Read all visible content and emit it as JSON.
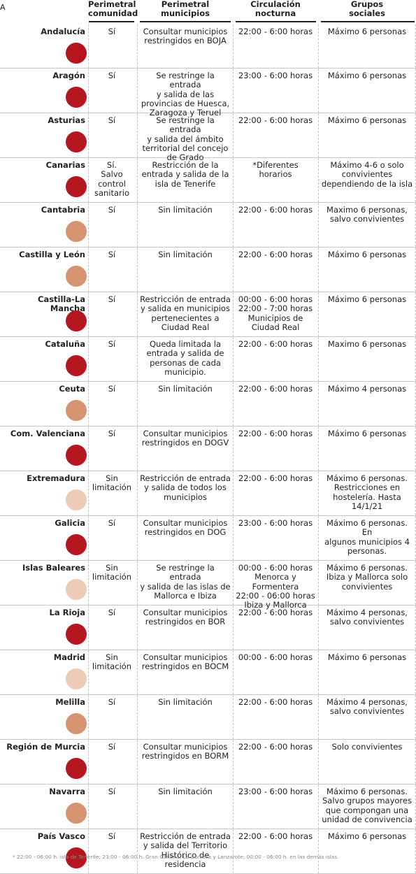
{
  "corner_mark": "A",
  "headers": {
    "perimetral_comunidad": "Perimetral\ncomunidad",
    "perimetral_municipios": "Perimetral\nmunicipios",
    "circulacion_nocturna": "Circulación\nnocturna",
    "grupos_sociales": "Grupos\nsociales"
  },
  "level_colors": {
    "high": "#b5151c",
    "medium": "#d69473",
    "low": "#ecccb7"
  },
  "rows": [
    {
      "name": "Andalucía",
      "level": "high",
      "perimetral_comunidad": "Sí",
      "perimetral_municipios": "Consultar municipios\nrestringidos en BOJA",
      "circulacion_nocturna": "22:00 - 6:00 horas",
      "grupos_sociales": "Máximo 6 personas"
    },
    {
      "name": "Aragón",
      "level": "high",
      "perimetral_comunidad": "Sí",
      "perimetral_municipios": "Se restringe la entrada\ny salida de las\nprovincias de Huesca,\nZaragoza y Teruel",
      "circulacion_nocturna": "23:00 - 6:00 horas",
      "grupos_sociales": "Máximo 6 personas"
    },
    {
      "name": "Asturias",
      "level": "high",
      "perimetral_comunidad": "Sí",
      "perimetral_municipios": "Se restringe la entrada\ny salida del ámbito\nterritorial del concejo\nde Grado",
      "circulacion_nocturna": "22:00 - 6:00 horas",
      "grupos_sociales": "Máximo 6 personas"
    },
    {
      "name": "Canarias",
      "level": "high",
      "perimetral_comunidad": "Sí.\nSalvo\ncontrol\nsanitario",
      "perimetral_municipios": "Restricción de la\nentrada y salida de la\nisla de Tenerife",
      "circulacion_nocturna": "*Diferentes horarios",
      "grupos_sociales": "Máximo 4-6 o solo\nconvivientes\ndependiendo de la isla"
    },
    {
      "name": "Cantabria",
      "level": "medium",
      "perimetral_comunidad": "Sí",
      "perimetral_municipios": "Sin limitación",
      "circulacion_nocturna": "22:00 - 6:00 horas",
      "grupos_sociales": "Maximo 6 personas,\nsalvo convivientes"
    },
    {
      "name": "Castilla y León",
      "level": "medium",
      "perimetral_comunidad": "Sí",
      "perimetral_municipios": "Sin limitación",
      "circulacion_nocturna": "22:00 - 6:00 horas",
      "grupos_sociales": "Máximo 6 personas"
    },
    {
      "name": "Castilla-La Mancha",
      "level": "high",
      "perimetral_comunidad": "Sí",
      "perimetral_municipios": "Restricción de entrada\ny salida en municipios\npertenecientes a\nCiudad Real",
      "circulacion_nocturna": "00:00 - 6:00 horas\n22:00 - 7:00 horas\nMunicipios de\nCiudad Real",
      "grupos_sociales": "Máximo 6 personas"
    },
    {
      "name": "Cataluña",
      "level": "high",
      "perimetral_comunidad": "Sí",
      "perimetral_municipios": "Queda limitada la\nentrada y salida de\npersonas de cada\nmunicipio.",
      "circulacion_nocturna": "22:00 - 6:00 horas",
      "grupos_sociales": "Maximo 6 personas"
    },
    {
      "name": "Ceuta",
      "level": "medium",
      "perimetral_comunidad": "Sí",
      "perimetral_municipios": "Sin limitación",
      "circulacion_nocturna": "22:00 - 6:00 horas",
      "grupos_sociales": "Máximo 4 personas"
    },
    {
      "name": "Com. Valenciana",
      "level": "high",
      "perimetral_comunidad": "Sí",
      "perimetral_municipios": "Consultar municipios\nrestringidos en DOGV",
      "circulacion_nocturna": "22:00 - 6:00 horas",
      "grupos_sociales": "Máximo 6 personas"
    },
    {
      "name": "Extremadura",
      "level": "low",
      "perimetral_comunidad": "Sin\nlimitación",
      "perimetral_municipios": "Restricción de entrada\ny salida de todos los\nmunicipios",
      "circulacion_nocturna": "22:00 - 6:00 horas",
      "grupos_sociales": "Máximo 6 personas.\nRestricciones en\nhostelería. Hasta\n14/1/21"
    },
    {
      "name": "Galicia",
      "level": "high",
      "perimetral_comunidad": "Sí",
      "perimetral_municipios": "Consultar municipios\nrestringidos en DOG",
      "circulacion_nocturna": "23:00 - 6:00 horas",
      "grupos_sociales": "Máximo 6 personas. En\nalgunos municipios 4\npersonas."
    },
    {
      "name": "Islas Baleares",
      "level": "low",
      "perimetral_comunidad": "Sin\nlimitación",
      "perimetral_municipios": "Se restringe la entrada\ny salida de las islas de\nMallorca e Ibiza",
      "circulacion_nocturna": "00:00 - 6:00 horas\nMenorca y Formentera\n22:00 - 06:00 horas\nIbiza y Mallorca",
      "grupos_sociales": "Máximo 6 personas.\nIbiza y Mallorca solo\nconvivientes"
    },
    {
      "name": "La Rioja",
      "level": "high",
      "perimetral_comunidad": "Sí",
      "perimetral_municipios": "Consultar municipios\nrestringidos en BOR",
      "circulacion_nocturna": "22:00 - 6:00 horas",
      "grupos_sociales": "Máximo 4 personas,\nsalvo convivientes"
    },
    {
      "name": "Madrid",
      "level": "low",
      "perimetral_comunidad": "Sin\nlimitación",
      "perimetral_municipios": "Consultar municipios\nrestringidos en BOCM",
      "circulacion_nocturna": "00:00 - 6:00 horas",
      "grupos_sociales": "Máximo 6 personas"
    },
    {
      "name": "Melilla",
      "level": "medium",
      "perimetral_comunidad": "Sí",
      "perimetral_municipios": "Sin limitación",
      "circulacion_nocturna": "22:00 - 6:00 horas",
      "grupos_sociales": "Máximo 4 personas,\nsalvo convivientes"
    },
    {
      "name": "Región de Murcia",
      "level": "high",
      "perimetral_comunidad": "Sí",
      "perimetral_municipios": "Consultar municipios\nrestringidos en BORM",
      "circulacion_nocturna": "22:00 - 6:00 horas",
      "grupos_sociales": "Solo convivientes"
    },
    {
      "name": "Navarra",
      "level": "medium",
      "perimetral_comunidad": "Sí",
      "perimetral_municipios": "Sin limitación",
      "circulacion_nocturna": "23:00 - 6:00 horas",
      "grupos_sociales": "Máximo 6 personas.\nSalvo grupos mayores\nque compongan una\nunidad de convivencia"
    },
    {
      "name": "País Vasco",
      "level": "high",
      "perimetral_comunidad": "Sí",
      "perimetral_municipios": "Restricción de entrada\ny salida del Territorio\nHistórico de residencia",
      "circulacion_nocturna": "22:00 - 6:00 horas",
      "grupos_sociales": "Máximo 6 personas"
    }
  ],
  "footnote": "* 22:00 - 06:00 h. isla de Tenerife; 23:00 - 06:00 h. Gran Canaria, La Gomera y Lanzarote; 00:00 - 06:00 h. en las demás islas."
}
